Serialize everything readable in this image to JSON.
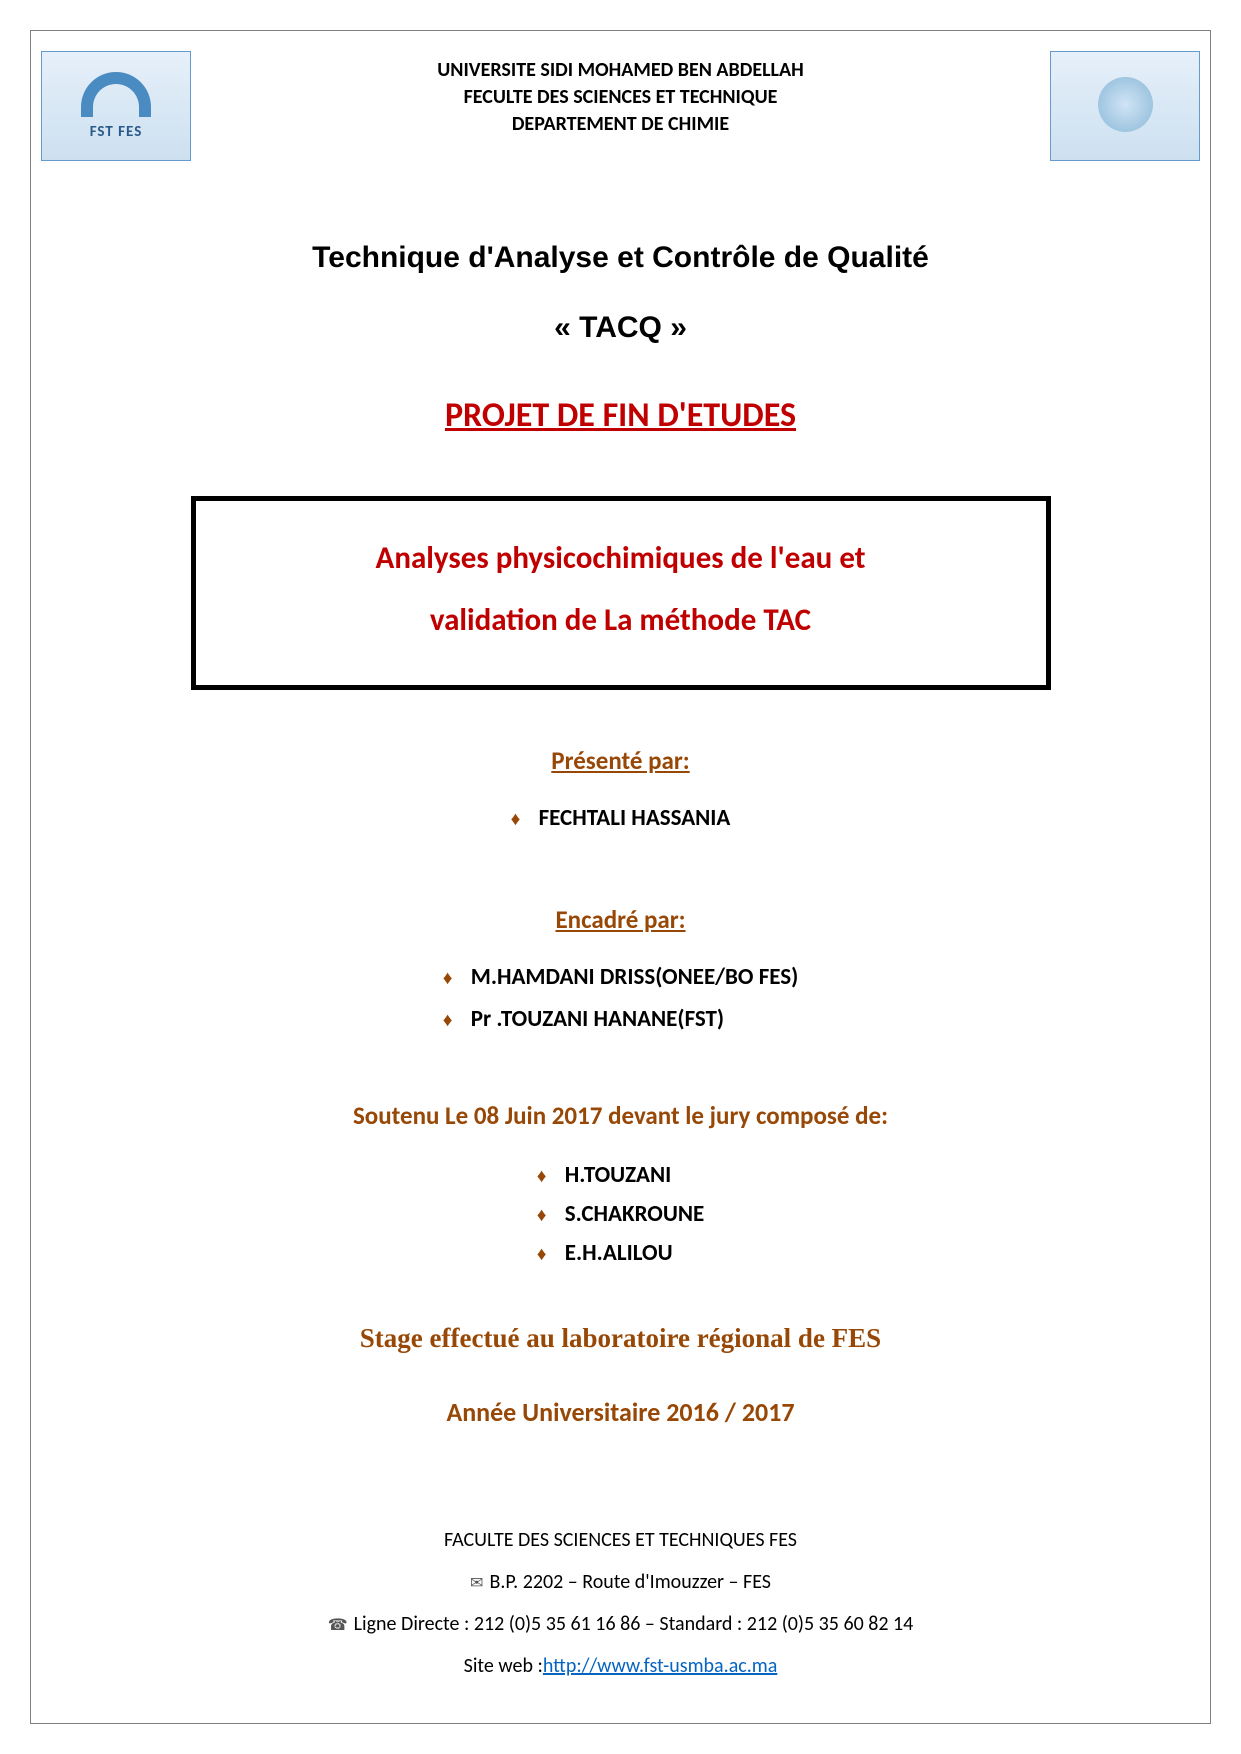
{
  "colors": {
    "accent_brown": "#984806",
    "accent_red": "#c00000",
    "link_blue": "#0563c1",
    "text_black": "#000000",
    "border_gray": "#808080",
    "logo_blue": "#4a8bc2",
    "background": "#ffffff"
  },
  "header": {
    "line1": "UNIVERSITE SIDI MOHAMED BEN ABDELLAH",
    "line2": "FECULTE DES SCIENCES ET TECHNIQUE",
    "line3": "DEPARTEMENT DE CHIMIE",
    "logo_left_label": "FST FES"
  },
  "program": {
    "title": "Technique d'Analyse et Contrôle de Qualité",
    "acronym": "« TACQ »"
  },
  "project_heading": "PROJET DE FIN D'ETUDES",
  "thesis_title": {
    "line1": "Analyses physicochimiques de l'eau et",
    "line2": "validation de La méthode TAC"
  },
  "presented_by": {
    "label": "Présenté par:",
    "authors": [
      "FECHTALI HASSANIA"
    ]
  },
  "supervised_by": {
    "label": "Encadré par:",
    "supervisors": [
      "M.HAMDANI DRISS(ONEE/BO FES)",
      "Pr .TOUZANI HANANE(FST)"
    ]
  },
  "defended": "Soutenu Le 08 Juin 2017  devant le jury composé de:",
  "jury": [
    "H.TOUZANI",
    "S.CHAKROUNE",
    "E.H.ALILOU"
  ],
  "internship": "Stage effectué au laboratoire régional de FES",
  "academic_year": "Année Universitaire 2016 / 2017",
  "footer": {
    "faculty": "FACULTE DES SCIENCES ET TECHNIQUES FES",
    "address": "B.P. 2202 – Route d'Imouzzer – FES",
    "phone": "Ligne Directe : 212 (0)5 35 61 16 86 – Standard : 212 (0)5 35 60 82 14",
    "website_label": "Site web :",
    "website_url": "http://www.fst-usmba.ac.ma"
  }
}
